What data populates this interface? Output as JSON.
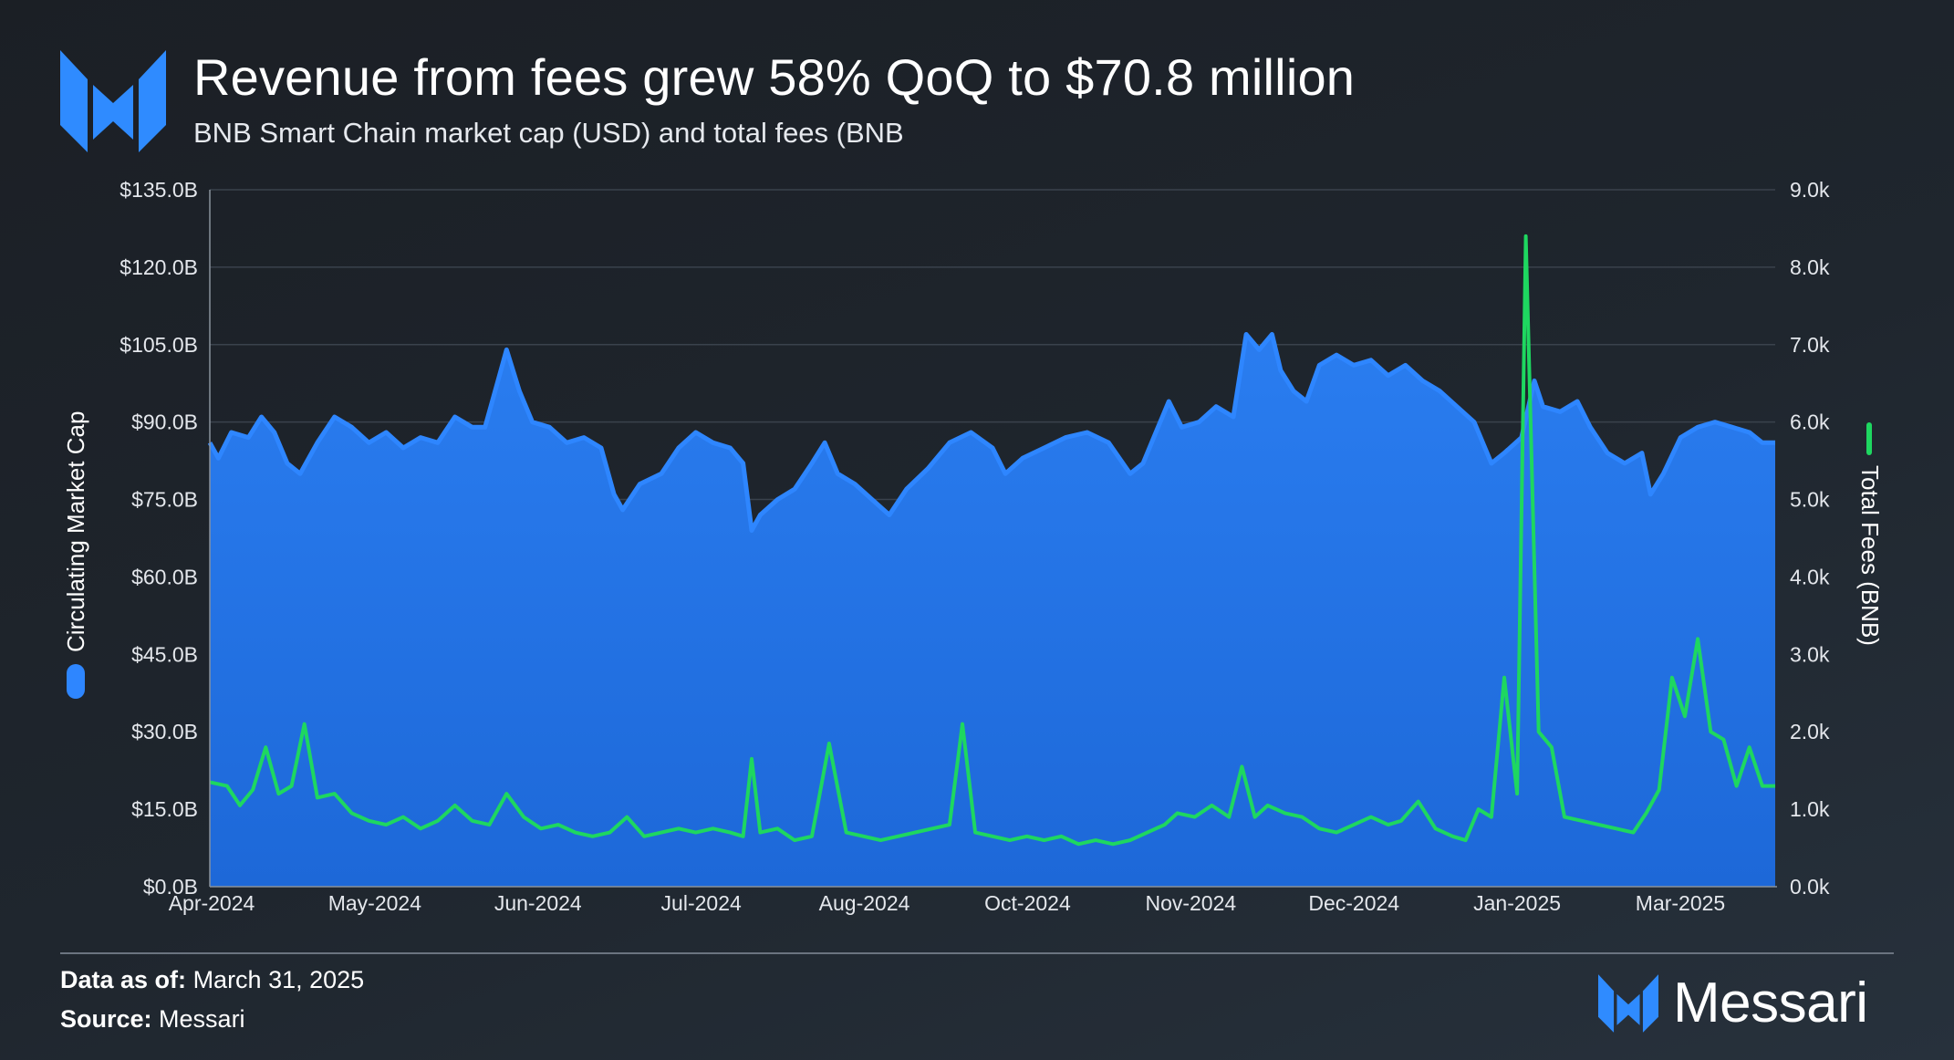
{
  "header": {
    "title": "Revenue from fees grew 58% QoQ to $70.8 million",
    "subtitle": "BNB Smart Chain market cap (USD) and total fees (BNB"
  },
  "footer": {
    "date_label": "Data as of:",
    "date_value": "March 31, 2025",
    "source_label": "Source:",
    "source_value": "Messari",
    "brand": "Messari"
  },
  "colors": {
    "market_cap_line": "#2e86ff",
    "market_cap_fill": "#1d68d8",
    "fees_line": "#1ed760",
    "grid": "#3a424c"
  },
  "chart_data": {
    "type": "area",
    "title": "Revenue from fees grew 58% QoQ to $70.8 million",
    "subtitle": "BNB Smart Chain market cap (USD) and total fees (BNB",
    "x_tick_labels": [
      "Apr-2024",
      "May-2024",
      "Jun-2024",
      "Jul-2024",
      "Aug-2024",
      "Oct-2024",
      "Nov-2024",
      "Dec-2024",
      "Jan-2025",
      "Mar-2025"
    ],
    "y_left": {
      "label": "Circulating Market Cap",
      "unit": "B USD",
      "min": 0,
      "max": 135,
      "tick_labels": [
        "$0.0B",
        "$15.0B",
        "$30.0B",
        "$45.0B",
        "$60.0B",
        "$75.0B",
        "$90.0B",
        "$105.0B",
        "$120.0B",
        "$135.0B"
      ]
    },
    "y_right": {
      "label": "Total Fees (BNB)",
      "unit": "BNB",
      "min": 0,
      "max": 9000,
      "tick_labels": [
        "0.0k",
        "1.0k",
        "2.0k",
        "3.0k",
        "4.0k",
        "5.0k",
        "6.0k",
        "7.0k",
        "8.0k",
        "9.0k"
      ]
    },
    "x_range": [
      "2024-04-01",
      "2025-03-31"
    ],
    "series": [
      {
        "name": "Circulating Market Cap",
        "axis": "left",
        "style": "area",
        "points": [
          [
            "2024-04-01",
            86
          ],
          [
            "2024-04-03",
            83
          ],
          [
            "2024-04-06",
            88
          ],
          [
            "2024-04-10",
            87
          ],
          [
            "2024-04-13",
            91
          ],
          [
            "2024-04-16",
            88
          ],
          [
            "2024-04-19",
            82
          ],
          [
            "2024-04-22",
            80
          ],
          [
            "2024-04-26",
            86
          ],
          [
            "2024-04-30",
            91
          ],
          [
            "2024-05-04",
            89
          ],
          [
            "2024-05-08",
            86
          ],
          [
            "2024-05-12",
            88
          ],
          [
            "2024-05-16",
            85
          ],
          [
            "2024-05-20",
            87
          ],
          [
            "2024-05-24",
            86
          ],
          [
            "2024-05-28",
            91
          ],
          [
            "2024-06-01",
            89
          ],
          [
            "2024-06-04",
            89
          ],
          [
            "2024-06-07",
            98
          ],
          [
            "2024-06-09",
            104
          ],
          [
            "2024-06-12",
            96
          ],
          [
            "2024-06-15",
            90
          ],
          [
            "2024-06-19",
            89
          ],
          [
            "2024-06-23",
            86
          ],
          [
            "2024-06-27",
            87
          ],
          [
            "2024-07-01",
            85
          ],
          [
            "2024-07-04",
            76
          ],
          [
            "2024-07-06",
            73
          ],
          [
            "2024-07-10",
            78
          ],
          [
            "2024-07-15",
            80
          ],
          [
            "2024-07-19",
            85
          ],
          [
            "2024-07-23",
            88
          ],
          [
            "2024-07-27",
            86
          ],
          [
            "2024-07-31",
            85
          ],
          [
            "2024-08-03",
            82
          ],
          [
            "2024-08-05",
            69
          ],
          [
            "2024-08-07",
            72
          ],
          [
            "2024-08-11",
            75
          ],
          [
            "2024-08-15",
            77
          ],
          [
            "2024-08-19",
            82
          ],
          [
            "2024-08-22",
            86
          ],
          [
            "2024-08-25",
            80
          ],
          [
            "2024-08-29",
            78
          ],
          [
            "2024-09-02",
            75
          ],
          [
            "2024-09-06",
            72
          ],
          [
            "2024-09-10",
            77
          ],
          [
            "2024-09-15",
            81
          ],
          [
            "2024-09-20",
            86
          ],
          [
            "2024-09-25",
            88
          ],
          [
            "2024-09-30",
            85
          ],
          [
            "2024-10-03",
            80
          ],
          [
            "2024-10-07",
            83
          ],
          [
            "2024-10-12",
            85
          ],
          [
            "2024-10-17",
            87
          ],
          [
            "2024-10-22",
            88
          ],
          [
            "2024-10-27",
            86
          ],
          [
            "2024-11-01",
            80
          ],
          [
            "2024-11-04",
            82
          ],
          [
            "2024-11-07",
            88
          ],
          [
            "2024-11-10",
            94
          ],
          [
            "2024-11-13",
            89
          ],
          [
            "2024-11-17",
            90
          ],
          [
            "2024-11-21",
            93
          ],
          [
            "2024-11-25",
            91
          ],
          [
            "2024-11-28",
            107
          ],
          [
            "2024-12-01",
            104
          ],
          [
            "2024-12-04",
            107
          ],
          [
            "2024-12-06",
            100
          ],
          [
            "2024-12-09",
            96
          ],
          [
            "2024-12-12",
            94
          ],
          [
            "2024-12-15",
            101
          ],
          [
            "2024-12-19",
            103
          ],
          [
            "2024-12-23",
            101
          ],
          [
            "2024-12-27",
            102
          ],
          [
            "2024-12-31",
            99
          ],
          [
            "2025-01-04",
            101
          ],
          [
            "2025-01-08",
            98
          ],
          [
            "2025-01-12",
            96
          ],
          [
            "2025-01-16",
            93
          ],
          [
            "2025-01-20",
            90
          ],
          [
            "2025-01-24",
            82
          ],
          [
            "2025-01-27",
            84
          ],
          [
            "2025-01-31",
            87
          ],
          [
            "2025-02-03",
            98
          ],
          [
            "2025-02-05",
            93
          ],
          [
            "2025-02-09",
            92
          ],
          [
            "2025-02-13",
            94
          ],
          [
            "2025-02-16",
            89
          ],
          [
            "2025-02-20",
            84
          ],
          [
            "2025-02-24",
            82
          ],
          [
            "2025-02-28",
            84
          ],
          [
            "2025-03-02",
            76
          ],
          [
            "2025-03-05",
            80
          ],
          [
            "2025-03-09",
            87
          ],
          [
            "2025-03-13",
            89
          ],
          [
            "2025-03-17",
            90
          ],
          [
            "2025-03-21",
            89
          ],
          [
            "2025-03-25",
            88
          ],
          [
            "2025-03-28",
            86
          ],
          [
            "2025-03-31",
            86
          ]
        ]
      },
      {
        "name": "Total Fees (BNB)",
        "axis": "right",
        "style": "line",
        "points": [
          [
            "2024-04-01",
            1350
          ],
          [
            "2024-04-05",
            1300
          ],
          [
            "2024-04-08",
            1050
          ],
          [
            "2024-04-11",
            1250
          ],
          [
            "2024-04-14",
            1800
          ],
          [
            "2024-04-17",
            1200
          ],
          [
            "2024-04-20",
            1300
          ],
          [
            "2024-04-23",
            2100
          ],
          [
            "2024-04-26",
            1150
          ],
          [
            "2024-04-30",
            1200
          ],
          [
            "2024-05-04",
            950
          ],
          [
            "2024-05-08",
            850
          ],
          [
            "2024-05-12",
            800
          ],
          [
            "2024-05-16",
            900
          ],
          [
            "2024-05-20",
            750
          ],
          [
            "2024-05-24",
            850
          ],
          [
            "2024-05-28",
            1050
          ],
          [
            "2024-06-01",
            850
          ],
          [
            "2024-06-05",
            800
          ],
          [
            "2024-06-09",
            1200
          ],
          [
            "2024-06-13",
            900
          ],
          [
            "2024-06-17",
            750
          ],
          [
            "2024-06-21",
            800
          ],
          [
            "2024-06-25",
            700
          ],
          [
            "2024-06-29",
            650
          ],
          [
            "2024-07-03",
            700
          ],
          [
            "2024-07-07",
            900
          ],
          [
            "2024-07-11",
            650
          ],
          [
            "2024-07-15",
            700
          ],
          [
            "2024-07-19",
            750
          ],
          [
            "2024-07-23",
            700
          ],
          [
            "2024-07-27",
            750
          ],
          [
            "2024-07-31",
            700
          ],
          [
            "2024-08-03",
            650
          ],
          [
            "2024-08-05",
            1650
          ],
          [
            "2024-08-07",
            700
          ],
          [
            "2024-08-11",
            750
          ],
          [
            "2024-08-15",
            600
          ],
          [
            "2024-08-19",
            650
          ],
          [
            "2024-08-23",
            1850
          ],
          [
            "2024-08-27",
            700
          ],
          [
            "2024-08-31",
            650
          ],
          [
            "2024-09-04",
            600
          ],
          [
            "2024-09-08",
            650
          ],
          [
            "2024-09-12",
            700
          ],
          [
            "2024-09-16",
            750
          ],
          [
            "2024-09-20",
            800
          ],
          [
            "2024-09-23",
            2100
          ],
          [
            "2024-09-26",
            700
          ],
          [
            "2024-09-30",
            650
          ],
          [
            "2024-10-04",
            600
          ],
          [
            "2024-10-08",
            650
          ],
          [
            "2024-10-12",
            600
          ],
          [
            "2024-10-16",
            650
          ],
          [
            "2024-10-20",
            550
          ],
          [
            "2024-10-24",
            600
          ],
          [
            "2024-10-28",
            550
          ],
          [
            "2024-11-01",
            600
          ],
          [
            "2024-11-05",
            700
          ],
          [
            "2024-11-09",
            800
          ],
          [
            "2024-11-12",
            950
          ],
          [
            "2024-11-16",
            900
          ],
          [
            "2024-11-20",
            1050
          ],
          [
            "2024-11-24",
            900
          ],
          [
            "2024-11-27",
            1550
          ],
          [
            "2024-11-30",
            900
          ],
          [
            "2024-12-03",
            1050
          ],
          [
            "2024-12-07",
            950
          ],
          [
            "2024-12-11",
            900
          ],
          [
            "2024-12-15",
            750
          ],
          [
            "2024-12-19",
            700
          ],
          [
            "2024-12-23",
            800
          ],
          [
            "2024-12-27",
            900
          ],
          [
            "2024-12-31",
            800
          ],
          [
            "2025-01-03",
            850
          ],
          [
            "2025-01-07",
            1100
          ],
          [
            "2025-01-11",
            750
          ],
          [
            "2025-01-15",
            650
          ],
          [
            "2025-01-18",
            600
          ],
          [
            "2025-01-21",
            1000
          ],
          [
            "2025-01-24",
            900
          ],
          [
            "2025-01-27",
            2700
          ],
          [
            "2025-01-30",
            1200
          ],
          [
            "2025-02-01",
            8400
          ],
          [
            "2025-02-04",
            2000
          ],
          [
            "2025-02-07",
            1800
          ],
          [
            "2025-02-10",
            900
          ],
          [
            "2025-02-14",
            850
          ],
          [
            "2025-02-18",
            800
          ],
          [
            "2025-02-22",
            750
          ],
          [
            "2025-02-26",
            700
          ],
          [
            "2025-03-01",
            950
          ],
          [
            "2025-03-04",
            1250
          ],
          [
            "2025-03-07",
            2700
          ],
          [
            "2025-03-10",
            2200
          ],
          [
            "2025-03-13",
            3200
          ],
          [
            "2025-03-16",
            2000
          ],
          [
            "2025-03-19",
            1900
          ],
          [
            "2025-03-22",
            1300
          ],
          [
            "2025-03-25",
            1800
          ],
          [
            "2025-03-28",
            1300
          ],
          [
            "2025-03-31",
            1300
          ]
        ]
      }
    ]
  }
}
